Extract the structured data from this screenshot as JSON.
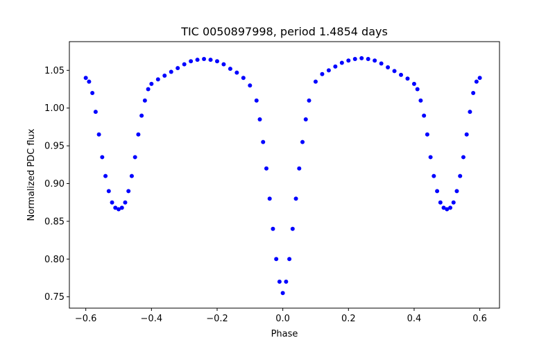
{
  "chart_data": {
    "type": "scatter",
    "title": "TIC 0050897998, period 1.4854 days",
    "xlabel": "Phase",
    "ylabel": "Normalized PDC flux",
    "xlim": [
      -0.65,
      0.66
    ],
    "ylim": [
      0.735,
      1.088
    ],
    "xticks": [
      -0.6,
      -0.4,
      -0.2,
      0.0,
      0.2,
      0.4,
      0.6
    ],
    "xtick_labels": [
      "−0.6",
      "−0.4",
      "−0.2",
      "0.0",
      "0.2",
      "0.4",
      "0.6"
    ],
    "yticks": [
      0.75,
      0.8,
      0.85,
      0.9,
      0.95,
      1.0,
      1.05
    ],
    "ytick_labels": [
      "0.75",
      "0.80",
      "0.85",
      "0.90",
      "0.95",
      "1.00",
      "1.05"
    ],
    "grid": false,
    "marker_color": "#0000ff",
    "series": [
      {
        "x": [
          -0.6,
          -0.59,
          -0.58,
          -0.57,
          -0.56,
          -0.55,
          -0.54,
          -0.53,
          -0.52,
          -0.51,
          -0.5,
          -0.49,
          -0.48,
          -0.47,
          -0.46,
          -0.45,
          -0.44,
          -0.43,
          -0.42,
          -0.41,
          -0.4,
          -0.38,
          -0.36,
          -0.34,
          -0.32,
          -0.3,
          -0.28,
          -0.26,
          -0.24,
          -0.22,
          -0.2,
          -0.18,
          -0.16,
          -0.14,
          -0.12,
          -0.1,
          -0.08,
          -0.07,
          -0.06,
          -0.05,
          -0.04,
          -0.03,
          -0.02,
          -0.01,
          0.0,
          0.01,
          0.02,
          0.03,
          0.04,
          0.05,
          0.06,
          0.07,
          0.08,
          0.1,
          0.12,
          0.14,
          0.16,
          0.18,
          0.2,
          0.22,
          0.24,
          0.26,
          0.28,
          0.3,
          0.32,
          0.34,
          0.36,
          0.38,
          0.4,
          0.41,
          0.42,
          0.43,
          0.44,
          0.45,
          0.46,
          0.47,
          0.48,
          0.49,
          0.5,
          0.51,
          0.52,
          0.53,
          0.54,
          0.55,
          0.56,
          0.57,
          0.58,
          0.59,
          0.6
        ],
        "y": [
          1.04,
          1.035,
          1.02,
          0.995,
          0.965,
          0.935,
          0.91,
          0.89,
          0.875,
          0.868,
          0.866,
          0.868,
          0.875,
          0.89,
          0.91,
          0.935,
          0.965,
          0.99,
          1.01,
          1.025,
          1.032,
          1.038,
          1.043,
          1.048,
          1.053,
          1.058,
          1.062,
          1.064,
          1.065,
          1.064,
          1.062,
          1.058,
          1.052,
          1.047,
          1.04,
          1.03,
          1.01,
          0.985,
          0.955,
          0.92,
          0.88,
          0.84,
          0.8,
          0.77,
          0.755,
          0.77,
          0.8,
          0.84,
          0.88,
          0.92,
          0.955,
          0.985,
          1.01,
          1.035,
          1.045,
          1.05,
          1.055,
          1.06,
          1.063,
          1.065,
          1.066,
          1.065,
          1.063,
          1.059,
          1.054,
          1.049,
          1.044,
          1.039,
          1.032,
          1.025,
          1.01,
          0.99,
          0.965,
          0.935,
          0.91,
          0.89,
          0.875,
          0.868,
          0.866,
          0.868,
          0.875,
          0.89,
          0.91,
          0.935,
          0.965,
          0.995,
          1.02,
          1.035,
          1.04
        ]
      }
    ]
  }
}
